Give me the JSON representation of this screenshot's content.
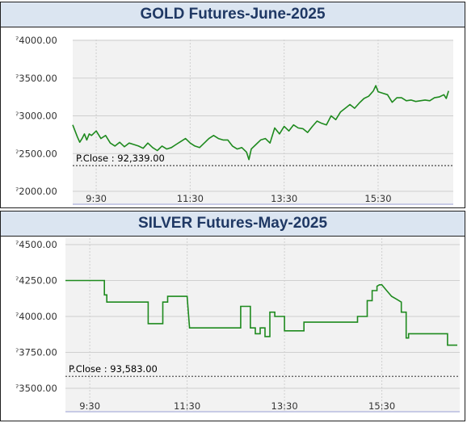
{
  "colors": {
    "line": "#1e8a1e",
    "title_bg": "#dbe5f1",
    "title_text": "#1f3864",
    "plot_bg": "#f2f2f2",
    "grid": "#cfcfcf"
  },
  "charts": [
    {
      "type": "line",
      "title": "GOLD Futures-June-2025",
      "y_tick_labels": [
        "ˀ4000.00",
        "ˀ3500.00",
        "ˀ3000.00",
        "ˀ2500.00",
        "ˀ2000.00"
      ],
      "x_tick_labels": [
        "9:30",
        "11:30",
        "13:30",
        "15:30"
      ],
      "prev_close_label": "P.Close : 92,339.00"
    },
    {
      "type": "line",
      "title": "SILVER Futures-May-2025",
      "y_tick_labels": [
        "ˀ4500.00",
        "ˀ4250.00",
        "ˀ4000.00",
        "ˀ3750.00",
        "ˀ3500.00"
      ],
      "x_tick_labels": [
        "9:30",
        "11:30",
        "13:30",
        "15:30"
      ],
      "prev_close_label": "P.Close : 93,583.00"
    }
  ],
  "chart_data": [
    {
      "type": "line",
      "title": "GOLD Futures-June-2025",
      "xlabel": "",
      "ylabel": "",
      "ylim": [
        2000,
        4000
      ],
      "yticks": [
        4000,
        3500,
        3000,
        2500,
        2000
      ],
      "xlim": [
        9.0,
        17.1
      ],
      "xticks": [
        9.5,
        11.5,
        13.5,
        15.5
      ],
      "prev_close_level": 2340,
      "series": [
        {
          "x": [
            9.0,
            9.05,
            9.1,
            9.15,
            9.2,
            9.25,
            9.3,
            9.35,
            9.4,
            9.5,
            9.6,
            9.7,
            9.8,
            9.9,
            10.0,
            10.1,
            10.2,
            10.3,
            10.4,
            10.5,
            10.6,
            10.7,
            10.8,
            10.9,
            11.0,
            11.1,
            11.2,
            11.3,
            11.4,
            11.5,
            11.6,
            11.7,
            11.8,
            11.9,
            12.0,
            12.1,
            12.2,
            12.3,
            12.4,
            12.5,
            12.6,
            12.7,
            12.75,
            12.8,
            12.9,
            13.0,
            13.1,
            13.2,
            13.3,
            13.4,
            13.5,
            13.6,
            13.7,
            13.8,
            13.9,
            14.0,
            14.1,
            14.2,
            14.3,
            14.4,
            14.5,
            14.6,
            14.7,
            14.8,
            14.9,
            15.0,
            15.1,
            15.2,
            15.3,
            15.4,
            15.45,
            15.5,
            15.6,
            15.7,
            15.8,
            15.9,
            16.0,
            16.1,
            16.2,
            16.3,
            16.4,
            16.5,
            16.6,
            16.7,
            16.8,
            16.9,
            16.95,
            17.0
          ],
          "y": [
            2880,
            2800,
            2720,
            2650,
            2700,
            2760,
            2680,
            2760,
            2740,
            2800,
            2700,
            2740,
            2640,
            2600,
            2650,
            2590,
            2640,
            2620,
            2600,
            2570,
            2640,
            2580,
            2540,
            2600,
            2560,
            2580,
            2620,
            2660,
            2700,
            2640,
            2600,
            2580,
            2640,
            2700,
            2740,
            2700,
            2680,
            2680,
            2600,
            2560,
            2580,
            2520,
            2420,
            2560,
            2620,
            2680,
            2700,
            2640,
            2840,
            2760,
            2860,
            2800,
            2880,
            2840,
            2830,
            2780,
            2860,
            2930,
            2900,
            2880,
            3000,
            2950,
            3050,
            3100,
            3150,
            3100,
            3170,
            3230,
            3260,
            3330,
            3400,
            3320,
            3300,
            3280,
            3180,
            3240,
            3240,
            3200,
            3210,
            3190,
            3200,
            3210,
            3200,
            3240,
            3250,
            3280,
            3230,
            3330
          ]
        }
      ]
    },
    {
      "type": "line",
      "title": "SILVER Futures-May-2025",
      "xlabel": "",
      "ylabel": "",
      "ylim": [
        3500,
        4500
      ],
      "yticks": [
        4500,
        4250,
        4000,
        3750,
        3500
      ],
      "xlim": [
        9.0,
        17.1
      ],
      "xticks": [
        9.5,
        11.5,
        13.5,
        15.5
      ],
      "prev_close_level": 3583,
      "series": [
        {
          "x": [
            9.0,
            9.8,
            9.8,
            9.85,
            9.85,
            10.7,
            10.7,
            11.0,
            11.0,
            11.1,
            11.1,
            11.5,
            11.5,
            11.55,
            11.55,
            12.6,
            12.6,
            12.8,
            12.8,
            12.9,
            12.9,
            13.0,
            13.0,
            13.1,
            13.1,
            13.2,
            13.2,
            13.3,
            13.3,
            13.4,
            13.4,
            13.5,
            13.5,
            13.9,
            13.9,
            14.8,
            14.8,
            15.0,
            15.0,
            15.2,
            15.2,
            15.3,
            15.3,
            15.4,
            15.4,
            15.45,
            15.5,
            15.55,
            15.6,
            15.7,
            15.8,
            15.9,
            15.9,
            16.0,
            16.0,
            16.05,
            16.05,
            16.1,
            16.1,
            16.85,
            16.85,
            17.05
          ],
          "y": [
            4250,
            4250,
            4150,
            4150,
            4100,
            4100,
            3950,
            3950,
            4100,
            4100,
            4140,
            4140,
            4140,
            3920,
            3920,
            3920,
            4070,
            4070,
            3920,
            3920,
            3880,
            3880,
            3920,
            3920,
            3860,
            3860,
            4030,
            4030,
            4000,
            4000,
            4000,
            4000,
            3900,
            3900,
            3960,
            3960,
            3960,
            3960,
            4000,
            4000,
            4110,
            4110,
            4180,
            4180,
            4210,
            4220,
            4220,
            4200,
            4180,
            4140,
            4120,
            4100,
            4030,
            4030,
            3850,
            3850,
            3880,
            3880,
            3880,
            3880,
            3800,
            3800
          ]
        }
      ]
    }
  ]
}
